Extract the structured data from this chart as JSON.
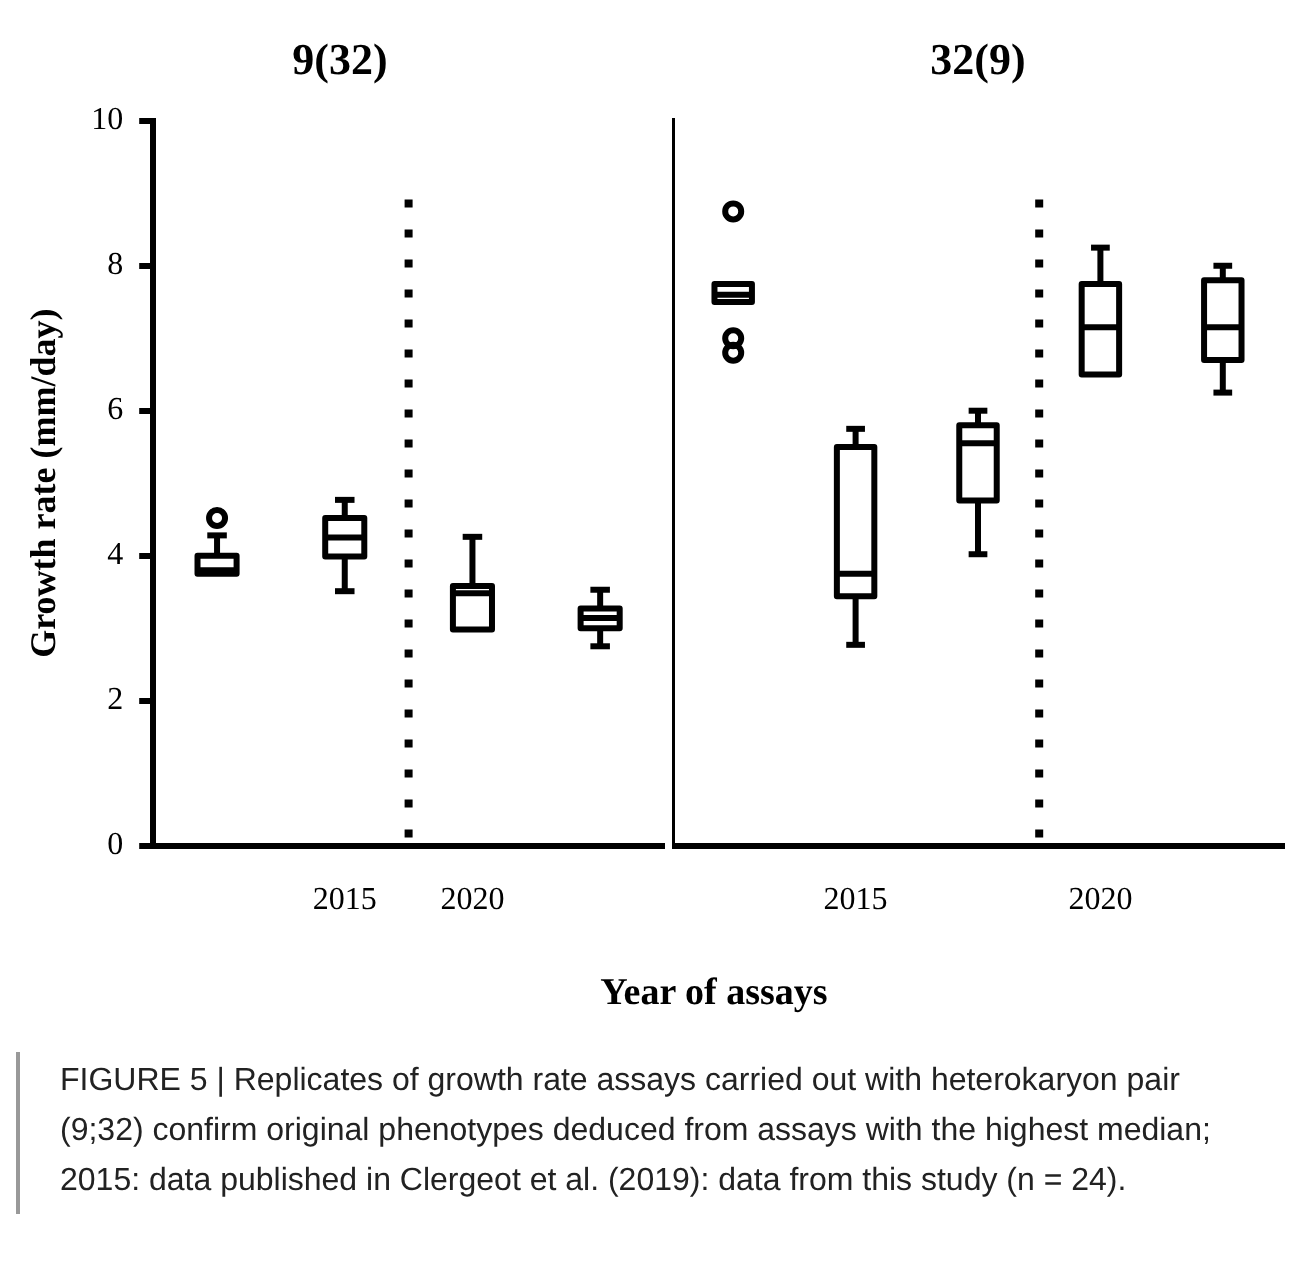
{
  "chart_data": [
    {
      "type": "box",
      "title": "9(32)",
      "ylabel": "Growth rate (mm/day)",
      "xlabel": "Year of assays",
      "categories": [
        null,
        "2015",
        "2020",
        null
      ],
      "ylim": [
        0,
        10
      ],
      "yticks": [
        0,
        2,
        4,
        6,
        8,
        10
      ],
      "boxes": [
        {
          "low": 3.75,
          "q1": 3.75,
          "median": 3.8,
          "q3": 4.0,
          "high": 4.28,
          "outliers": [
            4.52
          ]
        },
        {
          "low": 3.51,
          "q1": 3.99,
          "median": 4.25,
          "q3": 4.52,
          "high": 4.77
        },
        {
          "low": 2.98,
          "q1": 2.98,
          "median": 3.48,
          "q3": 3.58,
          "high": 4.26
        },
        {
          "low": 2.75,
          "q1": 3.0,
          "median": 3.14,
          "q3": 3.27,
          "high": 3.53
        }
      ],
      "annotations": [
        "FIGURE 5 | Replicates of growth rate assays carried out with heterokaryon pair (9;32) confirm original phenotypes deduced from assays with the highest median; 2015: data published in Clergeot et al. (2019): data from this study (n = 24)."
      ]
    },
    {
      "type": "box",
      "title": "32(9)",
      "categories": [
        null,
        "2015",
        null,
        "2020",
        null
      ],
      "ylim": [
        0,
        10
      ],
      "yticks": [
        0,
        2,
        4,
        6,
        8,
        10
      ],
      "tick_labels": "x",
      "boxes": [
        {
          "low": 7.5,
          "q1": 7.5,
          "median": 7.6,
          "q3": 7.75,
          "high": 7.75,
          "outliers": [
            8.75,
            7.0,
            6.8
          ]
        },
        {
          "low": 2.77,
          "q1": 3.44,
          "median": 3.75,
          "q3": 5.5,
          "high": 5.75
        },
        {
          "low": 4.02,
          "q1": 4.76,
          "median": 5.55,
          "q3": 5.8,
          "high": 6.0
        },
        {
          "low": 6.5,
          "q1": 6.5,
          "median": 7.15,
          "q3": 7.75,
          "high": 8.25
        },
        {
          "low": 6.25,
          "q1": 6.7,
          "median": 7.15,
          "q3": 7.8,
          "high": 8.0
        }
      ]
    }
  ]
}
